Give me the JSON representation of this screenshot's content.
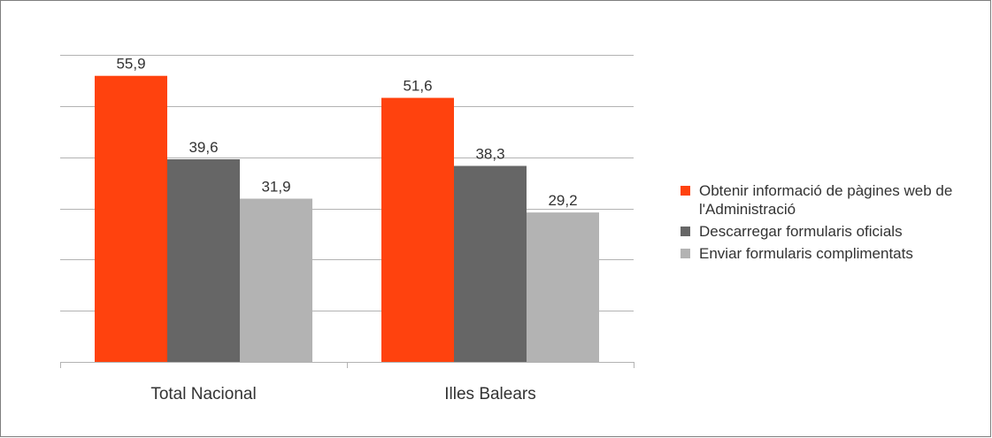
{
  "chart_data": {
    "type": "bar",
    "categories": [
      "Total Nacional",
      "Illes Balears"
    ],
    "series": [
      {
        "name": "Obtenir informació de pàgines web de l'Administració",
        "color": "#ff420e",
        "values": [
          55.9,
          51.6
        ],
        "labels": [
          "55,9",
          "51,6"
        ]
      },
      {
        "name": "Descarregar formularis oficials",
        "color": "#666666",
        "values": [
          39.6,
          38.3
        ],
        "labels": [
          "39,6",
          "38,3"
        ]
      },
      {
        "name": "Enviar formularis complimentats",
        "color": "#b3b3b3",
        "values": [
          31.9,
          29.2
        ],
        "labels": [
          "31,9",
          "29,2"
        ]
      }
    ],
    "ylim": [
      0,
      60
    ],
    "ytick_step": 10,
    "grid": true,
    "legend_position": "right"
  }
}
